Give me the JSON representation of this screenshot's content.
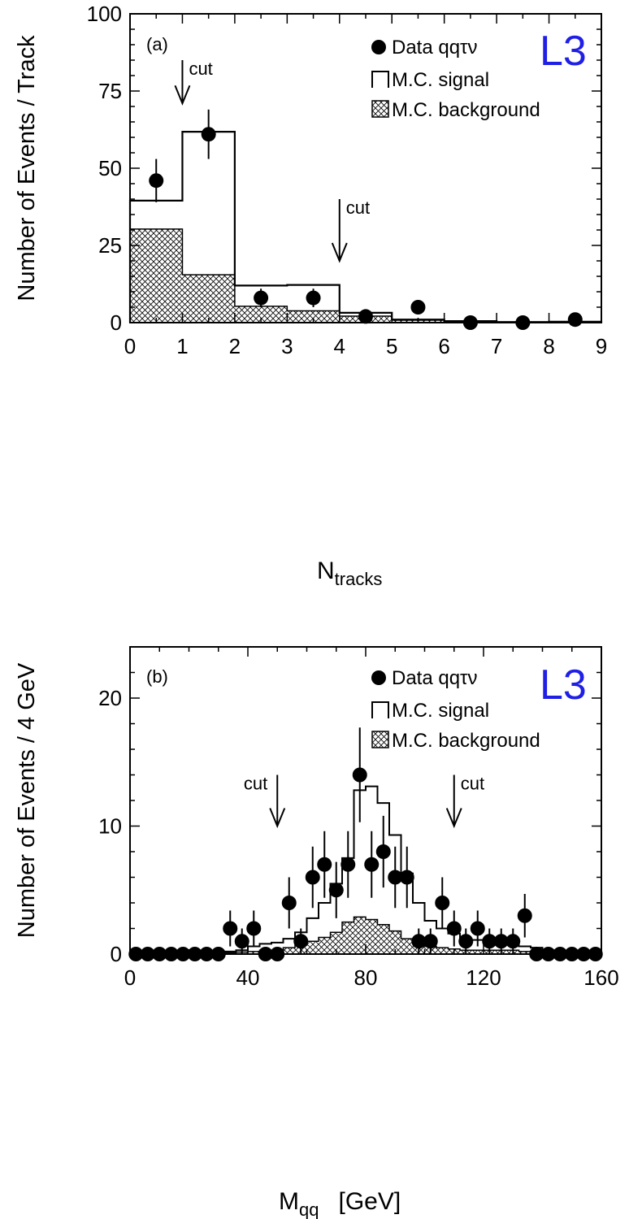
{
  "chart_data": [
    {
      "type": "bar",
      "panel_label": "(a)",
      "logo": "L3",
      "logo_color": "#1f1fe6",
      "xlabel": "N",
      "xlabel_sub": "tracks",
      "ylabel": "Number of Events / Track",
      "xlim": [
        0,
        9
      ],
      "ylim": [
        0,
        100
      ],
      "xticks": [
        "0",
        "1",
        "2",
        "3",
        "4",
        "5",
        "6",
        "7",
        "8",
        "9"
      ],
      "yticks": [
        "0",
        "25",
        "50",
        "75",
        "100"
      ],
      "legend": [
        "Data qqτν",
        "M.C. signal",
        "M.C. background"
      ],
      "bin_edges": [
        0,
        1,
        2,
        3,
        4,
        5,
        6,
        7,
        8,
        9
      ],
      "signal": [
        39.5,
        61.8,
        12.0,
        12.2,
        3.2,
        1.0,
        0.5,
        0.2,
        0.3
      ],
      "background": [
        30.3,
        15.5,
        5.3,
        3.8,
        2.1,
        0.8,
        0.3,
        0.2,
        0.2
      ],
      "data": {
        "x": [
          0.5,
          1.5,
          2.5,
          3.5,
          4.5,
          5.5,
          6.5,
          7.5,
          8.5
        ],
        "y": [
          46,
          61,
          8,
          8,
          2,
          5,
          0,
          0,
          1
        ],
        "err": [
          7,
          8,
          3,
          3,
          1.5,
          2.2,
          0,
          0,
          1
        ]
      },
      "cuts": [
        {
          "label": "cut",
          "x": 1,
          "y_top": 85,
          "y_bottom": 71
        },
        {
          "label": "cut",
          "x": 4,
          "y_top": 40,
          "y_bottom": 20
        }
      ]
    },
    {
      "type": "bar",
      "panel_label": "(b)",
      "logo": "L3",
      "logo_color": "#1f1fe6",
      "xlabel": "M",
      "xlabel_sub": "qq",
      "xlabel_unit": "[GeV]",
      "ylabel": "Number of Events / 4 GeV",
      "xlim": [
        0,
        160
      ],
      "ylim": [
        0,
        24
      ],
      "xticks": [
        "0",
        "40",
        "80",
        "120",
        "160"
      ],
      "yticks": [
        "0",
        "10",
        "20"
      ],
      "legend": [
        "Data qqτν",
        "M.C. signal",
        "M.C. background"
      ],
      "bin_edges": [
        0,
        4,
        8,
        12,
        16,
        20,
        24,
        28,
        32,
        36,
        40,
        44,
        48,
        52,
        56,
        60,
        64,
        68,
        72,
        76,
        80,
        84,
        88,
        92,
        96,
        100,
        104,
        108,
        112,
        116,
        120,
        124,
        128,
        132,
        136,
        140,
        144,
        148,
        152,
        156,
        160
      ],
      "signal": [
        0,
        0,
        0,
        0,
        0,
        0,
        0.05,
        0.1,
        0.2,
        0.3,
        0.6,
        0.8,
        0.9,
        1.2,
        1.7,
        2.8,
        4.0,
        5.5,
        7.5,
        12.8,
        13.1,
        11.8,
        9.3,
        6.3,
        4.0,
        2.6,
        2.0,
        1.6,
        1.1,
        1.1,
        1.0,
        0.9,
        0.8,
        0.6,
        0.5,
        0.3,
        0,
        0,
        0,
        0
      ],
      "background": [
        0,
        0,
        0,
        0,
        0,
        0,
        0,
        0.05,
        0.1,
        0.15,
        0.2,
        0.3,
        0.3,
        0.5,
        0.7,
        1.0,
        1.3,
        1.7,
        2.5,
        2.9,
        2.7,
        2.3,
        1.8,
        1.2,
        0.9,
        0.6,
        0.5,
        0.4,
        0.3,
        0.3,
        0.3,
        0.3,
        0.3,
        0.2,
        0.2,
        0.1,
        0,
        0,
        0,
        0
      ],
      "data": {
        "x": [
          2,
          6,
          10,
          14,
          18,
          22,
          26,
          30,
          34,
          38,
          42,
          46,
          50,
          54,
          58,
          62,
          66,
          70,
          74,
          78,
          82,
          86,
          90,
          94,
          98,
          102,
          106,
          110,
          114,
          118,
          122,
          126,
          130,
          134,
          138,
          142,
          146,
          150,
          154,
          158
        ],
        "y": [
          0,
          0,
          0,
          0,
          0,
          0,
          0,
          0,
          2,
          1,
          2,
          0,
          0,
          4,
          1,
          6,
          7,
          5,
          7,
          14,
          7,
          8,
          6,
          6,
          1,
          1,
          4,
          2,
          1,
          2,
          1,
          1,
          1,
          3,
          0,
          0,
          0,
          0,
          0,
          0
        ],
        "err": [
          0,
          0,
          0,
          0,
          0,
          0,
          0,
          0,
          1.4,
          1,
          1.4,
          0,
          0,
          2,
          1,
          2.4,
          2.6,
          2.2,
          2.6,
          3.7,
          2.6,
          2.8,
          2.4,
          2.4,
          1,
          1,
          2,
          1.4,
          1,
          1.4,
          1,
          1,
          1,
          1.7,
          0,
          0,
          0,
          0,
          0,
          0
        ]
      },
      "cuts": [
        {
          "label": "cut",
          "x": 50,
          "y_top": 14,
          "y_bottom": 10
        },
        {
          "label": "cut",
          "x": 110,
          "y_top": 14,
          "y_bottom": 10
        }
      ]
    }
  ]
}
